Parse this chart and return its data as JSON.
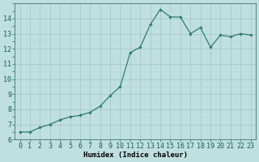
{
  "x": [
    0,
    1,
    2,
    3,
    4,
    5,
    6,
    7,
    8,
    9,
    10,
    11,
    12,
    13,
    14,
    15,
    16,
    17,
    18,
    19,
    20,
    21,
    22,
    23
  ],
  "y": [
    6.5,
    6.5,
    6.8,
    7.0,
    7.3,
    7.5,
    7.6,
    7.8,
    8.2,
    8.9,
    9.5,
    11.75,
    12.1,
    13.6,
    14.6,
    14.1,
    14.1,
    13.0,
    13.4,
    12.1,
    12.9,
    12.8,
    13.0,
    12.9
  ],
  "line_color": "#2d7d6e",
  "marker": "D",
  "marker_size": 2.2,
  "bg_color": "#c0e0e0",
  "grid_color_major": "#a8c8c8",
  "grid_color_minor": "#b8d8d8",
  "xlabel": "Humidex (Indice chaleur)",
  "ylim": [
    6,
    15
  ],
  "xlim_min": -0.5,
  "xlim_max": 23.5,
  "yticks": [
    6,
    7,
    8,
    9,
    10,
    11,
    12,
    13,
    14
  ],
  "xtick_labels": [
    "0",
    "1",
    "2",
    "3",
    "4",
    "5",
    "6",
    "7",
    "8",
    "9",
    "10",
    "11",
    "12",
    "13",
    "14",
    "15",
    "16",
    "17",
    "18",
    "19",
    "20",
    "21",
    "22",
    "23"
  ],
  "xlabel_fontsize": 6.5,
  "tick_fontsize": 6.0,
  "line_width": 0.9
}
